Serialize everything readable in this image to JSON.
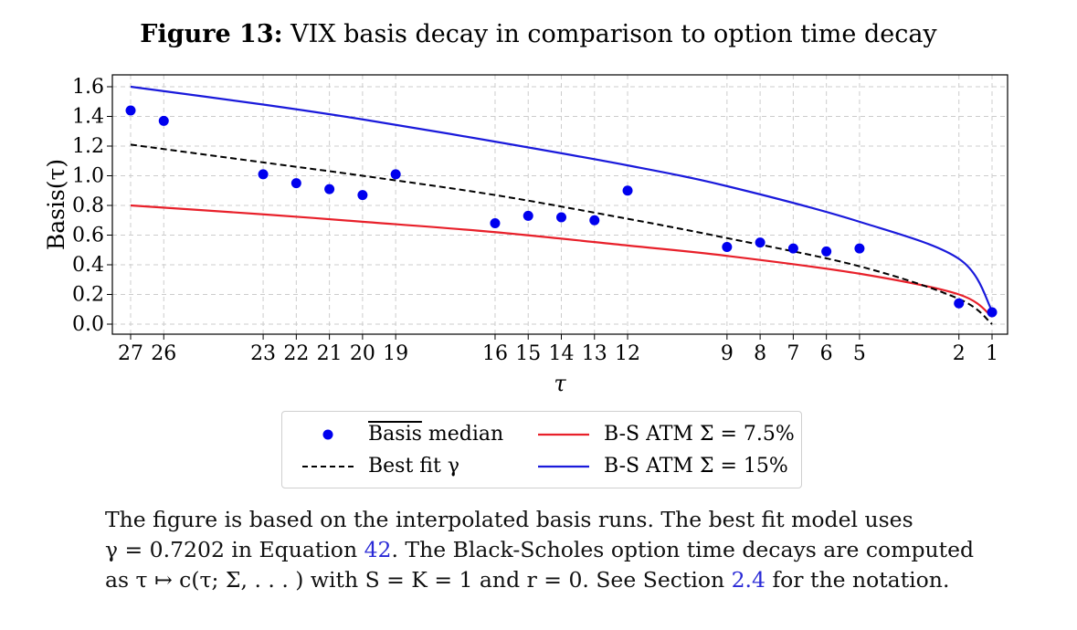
{
  "figure": {
    "label": "Figure 13:",
    "title": "VIX basis decay in comparison to option time decay"
  },
  "caption": {
    "line1": "The figure is based on the interpolated basis runs. The best fit model uses",
    "line2_pre": "γ = 0.7202 in Equation ",
    "line2_ref": "42",
    "line2_post": ". The Black-Scholes option time decays are computed",
    "line3_pre": "as τ ↦ c(τ; Σ, . . . ) with S = K = 1 and r = 0. See Section ",
    "line3_ref": "2.4",
    "line3_post": " for the notation."
  },
  "legend": {
    "median_overline": "Basis",
    "median_rest": " median",
    "best_fit": "Best fit γ",
    "bs_low": "B-S ATM Σ = 7.5%",
    "bs_high": "B-S ATM Σ = 15%"
  },
  "colors": {
    "median": "#0000ee",
    "best_fit": "#000000",
    "bs_low": "#e8202a",
    "bs_high": "#1a1adb",
    "grid": "#cccccc"
  },
  "chart_data": {
    "type": "scatter",
    "xlabel": "τ",
    "ylabel": "Basis(τ)",
    "x_reversed": true,
    "xlim": [
      27,
      1
    ],
    "ylim": [
      0.0,
      1.6
    ],
    "x_ticks": [
      27,
      26,
      23,
      22,
      21,
      20,
      19,
      16,
      15,
      14,
      13,
      12,
      9,
      8,
      7,
      6,
      5,
      2,
      1
    ],
    "y_ticks": [
      0.0,
      0.2,
      0.4,
      0.6,
      0.8,
      1.0,
      1.2,
      1.4,
      1.6
    ],
    "y_tick_labels": [
      "0.0",
      "0.2",
      "0.4",
      "0.6",
      "0.8",
      "1.0",
      "1.2",
      "1.4",
      "1.6"
    ],
    "grid": true,
    "legend_position": "below",
    "median_points": {
      "x": [
        27,
        26,
        23,
        22,
        21,
        20,
        19,
        16,
        15,
        14,
        13,
        12,
        9,
        8,
        7,
        6,
        5,
        2,
        1
      ],
      "y": [
        1.44,
        1.37,
        1.01,
        0.95,
        0.91,
        0.87,
        1.01,
        0.68,
        0.73,
        0.72,
        0.7,
        0.9,
        0.52,
        0.55,
        0.51,
        0.49,
        0.51,
        0.14,
        0.08
      ]
    },
    "best_fit": {
      "x": [
        27,
        23,
        20,
        16,
        12,
        9,
        5,
        2,
        1
      ],
      "y": [
        1.21,
        1.09,
        1.0,
        0.87,
        0.71,
        0.58,
        0.39,
        0.17,
        0.0
      ]
    },
    "bs_low": {
      "x": [
        27,
        23,
        20,
        16,
        12,
        9,
        5,
        2,
        1
      ],
      "y": [
        0.8,
        0.74,
        0.69,
        0.62,
        0.53,
        0.46,
        0.34,
        0.2,
        0.05
      ]
    },
    "bs_high": {
      "x": [
        27,
        23,
        20,
        16,
        12,
        9,
        5,
        2,
        1
      ],
      "y": [
        1.6,
        1.48,
        1.38,
        1.23,
        1.07,
        0.93,
        0.69,
        0.44,
        0.09
      ]
    }
  }
}
